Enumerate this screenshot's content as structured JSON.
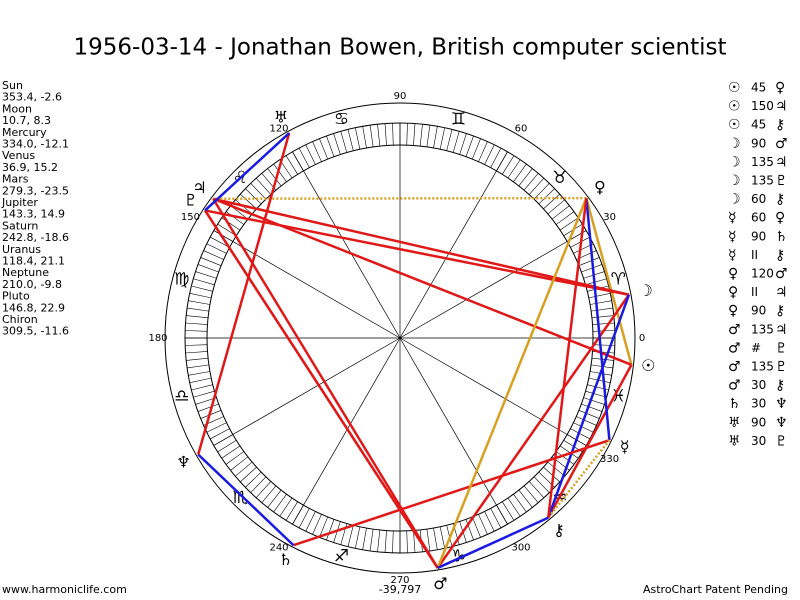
{
  "header": {
    "title": "1956-03-14 - Jonathan Bowen, British computer scientist"
  },
  "planets": [
    {
      "name": "Sun",
      "glyph": "☉",
      "position": "353.4, -2.6"
    },
    {
      "name": "Moon",
      "glyph": "☽",
      "position": "10.7, 8.3"
    },
    {
      "name": "Mercury",
      "glyph": "☿",
      "position": "334.0, -12.1"
    },
    {
      "name": "Venus",
      "glyph": "♀",
      "position": "36.9, 15.2"
    },
    {
      "name": "Mars",
      "glyph": "♂",
      "position": "279.3, -23.5"
    },
    {
      "name": "Jupiter",
      "glyph": "♃",
      "position": "143.3, 14.9"
    },
    {
      "name": "Saturn",
      "glyph": "♄",
      "position": "242.8, -18.6"
    },
    {
      "name": "Uranus",
      "glyph": "♅",
      "position": "118.4, 21.1"
    },
    {
      "name": "Neptune",
      "glyph": "♆",
      "position": "210.0, -9.8"
    },
    {
      "name": "Pluto",
      "glyph": "♇",
      "position": "146.8, 22.9"
    },
    {
      "name": "Chiron",
      "glyph": "⚷",
      "position": "309.5, -11.6"
    }
  ],
  "aspects": [
    {
      "from": "☉",
      "aspect": 45,
      "to": "♀",
      "color": "#d8a020",
      "style": "solid"
    },
    {
      "from": "☉",
      "aspect": 150,
      "to": "♃",
      "color": "#e01818",
      "style": "solid"
    },
    {
      "from": "☉",
      "aspect": 45,
      "to": "⚷",
      "color": "#e01818",
      "style": "solid"
    },
    {
      "from": "☽",
      "aspect": 90,
      "to": "♂",
      "color": "#e01818",
      "style": "solid"
    },
    {
      "from": "☽",
      "aspect": 135,
      "to": "♃",
      "color": "#e01818",
      "style": "solid"
    },
    {
      "from": "☽",
      "aspect": 135,
      "to": "♇",
      "color": "#e01818",
      "style": "solid"
    },
    {
      "from": "☽",
      "aspect": 60,
      "to": "⚷",
      "color": "#1a1ae0",
      "style": "solid"
    },
    {
      "from": "☿",
      "aspect": 60,
      "to": "♀",
      "color": "#1a1ae0",
      "style": "solid"
    },
    {
      "from": "☿",
      "aspect": 90,
      "to": "♄",
      "color": "#e01818",
      "style": "solid"
    },
    {
      "from": "☿",
      "aspect": "II",
      "to": "⚷",
      "color": "#d8a020",
      "style": "dotted"
    },
    {
      "from": "♀",
      "aspect": 120,
      "to": "♂",
      "color": "#d8a020",
      "style": "solid"
    },
    {
      "from": "♀",
      "aspect": "II",
      "to": "♃",
      "color": "#d8a020",
      "style": "dotted"
    },
    {
      "from": "♀",
      "aspect": 90,
      "to": "⚷",
      "color": "#e01818",
      "style": "solid"
    },
    {
      "from": "♂",
      "aspect": 135,
      "to": "♃",
      "color": "#e01818",
      "style": "solid"
    },
    {
      "from": "♂",
      "aspect": "#",
      "to": "♇",
      "color": "#e01818",
      "style": "dotted"
    },
    {
      "from": "♂",
      "aspect": 135,
      "to": "♇",
      "color": "#e01818",
      "style": "solid"
    },
    {
      "from": "♂",
      "aspect": 30,
      "to": "⚷",
      "color": "#1a1ae0",
      "style": "solid"
    },
    {
      "from": "♄",
      "aspect": 30,
      "to": "♆",
      "color": "#1a1ae0",
      "style": "solid"
    },
    {
      "from": "♅",
      "aspect": 90,
      "to": "♆",
      "color": "#e01818",
      "style": "solid"
    },
    {
      "from": "♅",
      "aspect": 30,
      "to": "♇",
      "color": "#1a1ae0",
      "style": "solid"
    }
  ],
  "wheel": {
    "degree_labels": [
      0,
      30,
      60,
      90,
      120,
      150,
      180,
      240,
      270,
      300,
      330
    ],
    "signs": [
      "♈",
      "♉",
      "♊",
      "♋",
      "♌",
      "♍",
      "♎",
      "♏",
      "♐",
      "♑",
      "♒",
      "♓"
    ]
  },
  "footer": {
    "left": "www.harmoniclife.com",
    "center": "-39,797",
    "right": "AstroChart Patent Pending"
  }
}
